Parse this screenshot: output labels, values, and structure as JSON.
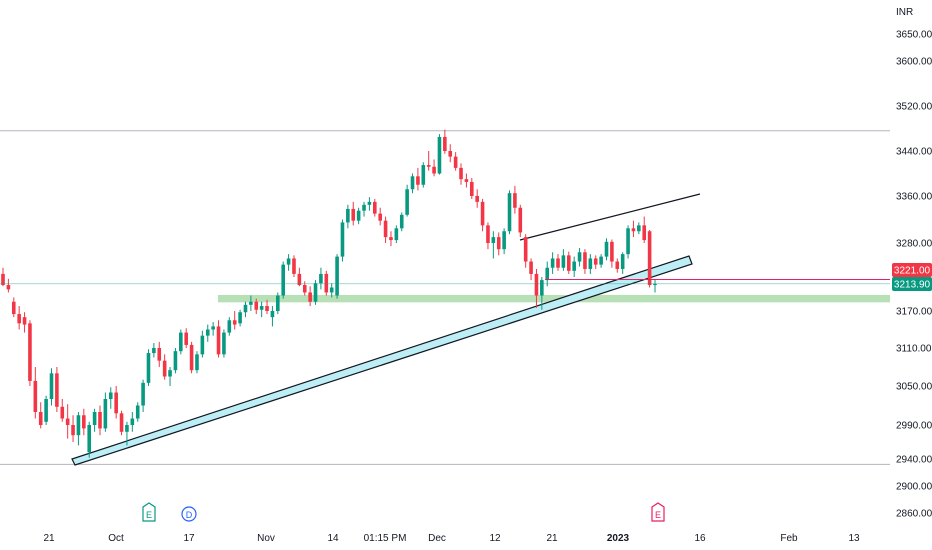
{
  "chart_data": {
    "type": "candlestick",
    "currency_label": "INR",
    "y_ticks": [
      3650,
      3600,
      3520,
      3440,
      3360,
      3280,
      3170,
      3110,
      3050,
      2990,
      2940,
      2900,
      2860
    ],
    "y_tick_labels": [
      "3650.00",
      "3600.00",
      "3520.00",
      "3440.00",
      "3360.00",
      "3280.00",
      "3170.00",
      "3110.00",
      "3050.00",
      "2990.00",
      "2940.00",
      "2900.00",
      "2860.00"
    ],
    "x_labels": [
      {
        "label": "21",
        "bold": false
      },
      {
        "label": "Oct",
        "bold": false
      },
      {
        "label": "17",
        "bold": false
      },
      {
        "label": "Nov",
        "bold": false
      },
      {
        "label": "14",
        "bold": false
      },
      {
        "label": "01:15 PM",
        "bold": false
      },
      {
        "label": "Dec",
        "bold": false
      },
      {
        "label": "12",
        "bold": false
      },
      {
        "label": "21",
        "bold": false
      },
      {
        "label": "2023",
        "bold": true
      },
      {
        "label": "16",
        "bold": false
      },
      {
        "label": "Feb",
        "bold": false
      },
      {
        "label": "13",
        "bold": false
      }
    ],
    "price_labels": [
      {
        "value": 3221.0,
        "text": "3221.00",
        "color": "#f23645"
      },
      {
        "value": 3213.9,
        "text": "3213.90",
        "color": "#089981"
      }
    ],
    "horizontal_lines": [
      3476,
      2932
    ],
    "support_zone": [
      3184,
      3196
    ],
    "event_markers": [
      "E",
      "D",
      "E"
    ],
    "colors": {
      "up": "#089981",
      "down": "#f23645",
      "zone": "#b7e0b7",
      "channel_fill": "#bdeef5",
      "last_price_line": "#e91e63"
    },
    "candles": [
      [
        3230,
        3240,
        3210,
        3212
      ],
      [
        3212,
        3222,
        3200,
        3205
      ],
      [
        3185,
        3192,
        3160,
        3165
      ],
      [
        3165,
        3178,
        3140,
        3150
      ],
      [
        3160,
        3168,
        3135,
        3148
      ],
      [
        3150,
        3155,
        3050,
        3058
      ],
      [
        3058,
        3080,
        3000,
        3010
      ],
      [
        3010,
        3025,
        2985,
        2990
      ],
      [
        2995,
        3035,
        2990,
        3030
      ],
      [
        3030,
        3078,
        3020,
        3070
      ],
      [
        3070,
        3080,
        3010,
        3018
      ],
      [
        3018,
        3030,
        2995,
        3000
      ],
      [
        3000,
        3022,
        2970,
        2990
      ],
      [
        2990,
        3005,
        2965,
        2975
      ],
      [
        2975,
        3010,
        2960,
        3005
      ],
      [
        3005,
        3015,
        2975,
        2985
      ],
      [
        2950,
        2995,
        2942,
        2990
      ],
      [
        2990,
        3015,
        2980,
        3010
      ],
      [
        3010,
        3020,
        2975,
        2985
      ],
      [
        2985,
        3040,
        2980,
        3030
      ],
      [
        3030,
        3048,
        3015,
        3040
      ],
      [
        3040,
        3050,
        3000,
        3008
      ],
      [
        3008,
        3012,
        2975,
        2980
      ],
      [
        2980,
        2995,
        2960,
        2990
      ],
      [
        2990,
        3010,
        2980,
        3000
      ],
      [
        3000,
        3025,
        2995,
        3020
      ],
      [
        3020,
        3060,
        3010,
        3055
      ],
      [
        3055,
        3108,
        3050,
        3102
      ],
      [
        3102,
        3118,
        3095,
        3110
      ],
      [
        3110,
        3120,
        3080,
        3090
      ],
      [
        3090,
        3100,
        3060,
        3065
      ],
      [
        3065,
        3080,
        3050,
        3075
      ],
      [
        3075,
        3110,
        3070,
        3105
      ],
      [
        3105,
        3140,
        3100,
        3135
      ],
      [
        3135,
        3142,
        3110,
        3115
      ],
      [
        3115,
        3120,
        3070,
        3075
      ],
      [
        3075,
        3105,
        3070,
        3100
      ],
      [
        3100,
        3138,
        3095,
        3130
      ],
      [
        3130,
        3148,
        3120,
        3140
      ],
      [
        3140,
        3152,
        3130,
        3145
      ],
      [
        3145,
        3155,
        3095,
        3100
      ],
      [
        3100,
        3140,
        3095,
        3135
      ],
      [
        3135,
        3160,
        3130,
        3155
      ],
      [
        3155,
        3170,
        3140,
        3148
      ],
      [
        3150,
        3172,
        3145,
        3168
      ],
      [
        3168,
        3185,
        3160,
        3180
      ],
      [
        3180,
        3195,
        3170,
        3185
      ],
      [
        3185,
        3190,
        3165,
        3172
      ],
      [
        3172,
        3185,
        3160,
        3178
      ],
      [
        3178,
        3188,
        3165,
        3170
      ],
      [
        3160,
        3178,
        3145,
        3170
      ],
      [
        3170,
        3200,
        3165,
        3195
      ],
      [
        3195,
        3250,
        3190,
        3245
      ],
      [
        3245,
        3262,
        3235,
        3255
      ],
      [
        3255,
        3260,
        3225,
        3230
      ],
      [
        3230,
        3240,
        3210,
        3212
      ],
      [
        3212,
        3218,
        3195,
        3200
      ],
      [
        3200,
        3210,
        3178,
        3185
      ],
      [
        3185,
        3220,
        3180,
        3215
      ],
      [
        3215,
        3240,
        3205,
        3230
      ],
      [
        3230,
        3235,
        3195,
        3200
      ],
      [
        3200,
        3215,
        3192,
        3208
      ],
      [
        3195,
        3262,
        3190,
        3258
      ],
      [
        3258,
        3320,
        3250,
        3315
      ],
      [
        3315,
        3345,
        3305,
        3338
      ],
      [
        3338,
        3350,
        3310,
        3318
      ],
      [
        3318,
        3340,
        3312,
        3335
      ],
      [
        3335,
        3350,
        3325,
        3345
      ],
      [
        3345,
        3358,
        3335,
        3350
      ],
      [
        3350,
        3355,
        3325,
        3330
      ],
      [
        3330,
        3340,
        3310,
        3318
      ],
      [
        3318,
        3325,
        3280,
        3290
      ],
      [
        3290,
        3300,
        3275,
        3285
      ],
      [
        3285,
        3310,
        3280,
        3305
      ],
      [
        3305,
        3332,
        3300,
        3328
      ],
      [
        3328,
        3380,
        3325,
        3372
      ],
      [
        3372,
        3400,
        3365,
        3395
      ],
      [
        3395,
        3410,
        3370,
        3380
      ],
      [
        3380,
        3420,
        3375,
        3415
      ],
      [
        3415,
        3440,
        3405,
        3412
      ],
      [
        3412,
        3425,
        3395,
        3400
      ],
      [
        3400,
        3470,
        3398,
        3465
      ],
      [
        3465,
        3478,
        3435,
        3440
      ],
      [
        3440,
        3452,
        3420,
        3430
      ],
      [
        3430,
        3438,
        3405,
        3410
      ],
      [
        3410,
        3418,
        3380,
        3390
      ],
      [
        3390,
        3400,
        3375,
        3385
      ],
      [
        3385,
        3392,
        3355,
        3360
      ],
      [
        3360,
        3372,
        3340,
        3350
      ],
      [
        3350,
        3355,
        3300,
        3310
      ],
      [
        3310,
        3315,
        3270,
        3280
      ],
      [
        3280,
        3300,
        3255,
        3290
      ],
      [
        3290,
        3298,
        3260,
        3270
      ],
      [
        3270,
        3305,
        3262,
        3300
      ],
      [
        3300,
        3370,
        3295,
        3365
      ],
      [
        3365,
        3378,
        3330,
        3340
      ],
      [
        3340,
        3345,
        3290,
        3298
      ],
      [
        3290,
        3295,
        3240,
        3250
      ],
      [
        3250,
        3255,
        3220,
        3230
      ],
      [
        3230,
        3238,
        3175,
        3195
      ],
      [
        3195,
        3225,
        3172,
        3220
      ],
      [
        3220,
        3250,
        3210,
        3240
      ],
      [
        3240,
        3265,
        3230,
        3255
      ],
      [
        3255,
        3262,
        3235,
        3240
      ],
      [
        3240,
        3270,
        3235,
        3260
      ],
      [
        3260,
        3266,
        3230,
        3235
      ],
      [
        3235,
        3258,
        3225,
        3250
      ],
      [
        3250,
        3272,
        3242,
        3265
      ],
      [
        3265,
        3270,
        3230,
        3238
      ],
      [
        3238,
        3262,
        3230,
        3255
      ],
      [
        3255,
        3260,
        3238,
        3245
      ],
      [
        3245,
        3262,
        3240,
        3258
      ],
      [
        3258,
        3288,
        3252,
        3282
      ],
      [
        3282,
        3286,
        3240,
        3250
      ],
      [
        3250,
        3255,
        3232,
        3238
      ],
      [
        3238,
        3265,
        3230,
        3262
      ],
      [
        3262,
        3310,
        3255,
        3305
      ],
      [
        3305,
        3318,
        3290,
        3300
      ],
      [
        3300,
        3315,
        3295,
        3310
      ],
      [
        3310,
        3325,
        3280,
        3285
      ],
      [
        3300,
        3302,
        3208,
        3212
      ],
      [
        3212,
        3222,
        3200,
        3214
      ]
    ]
  }
}
